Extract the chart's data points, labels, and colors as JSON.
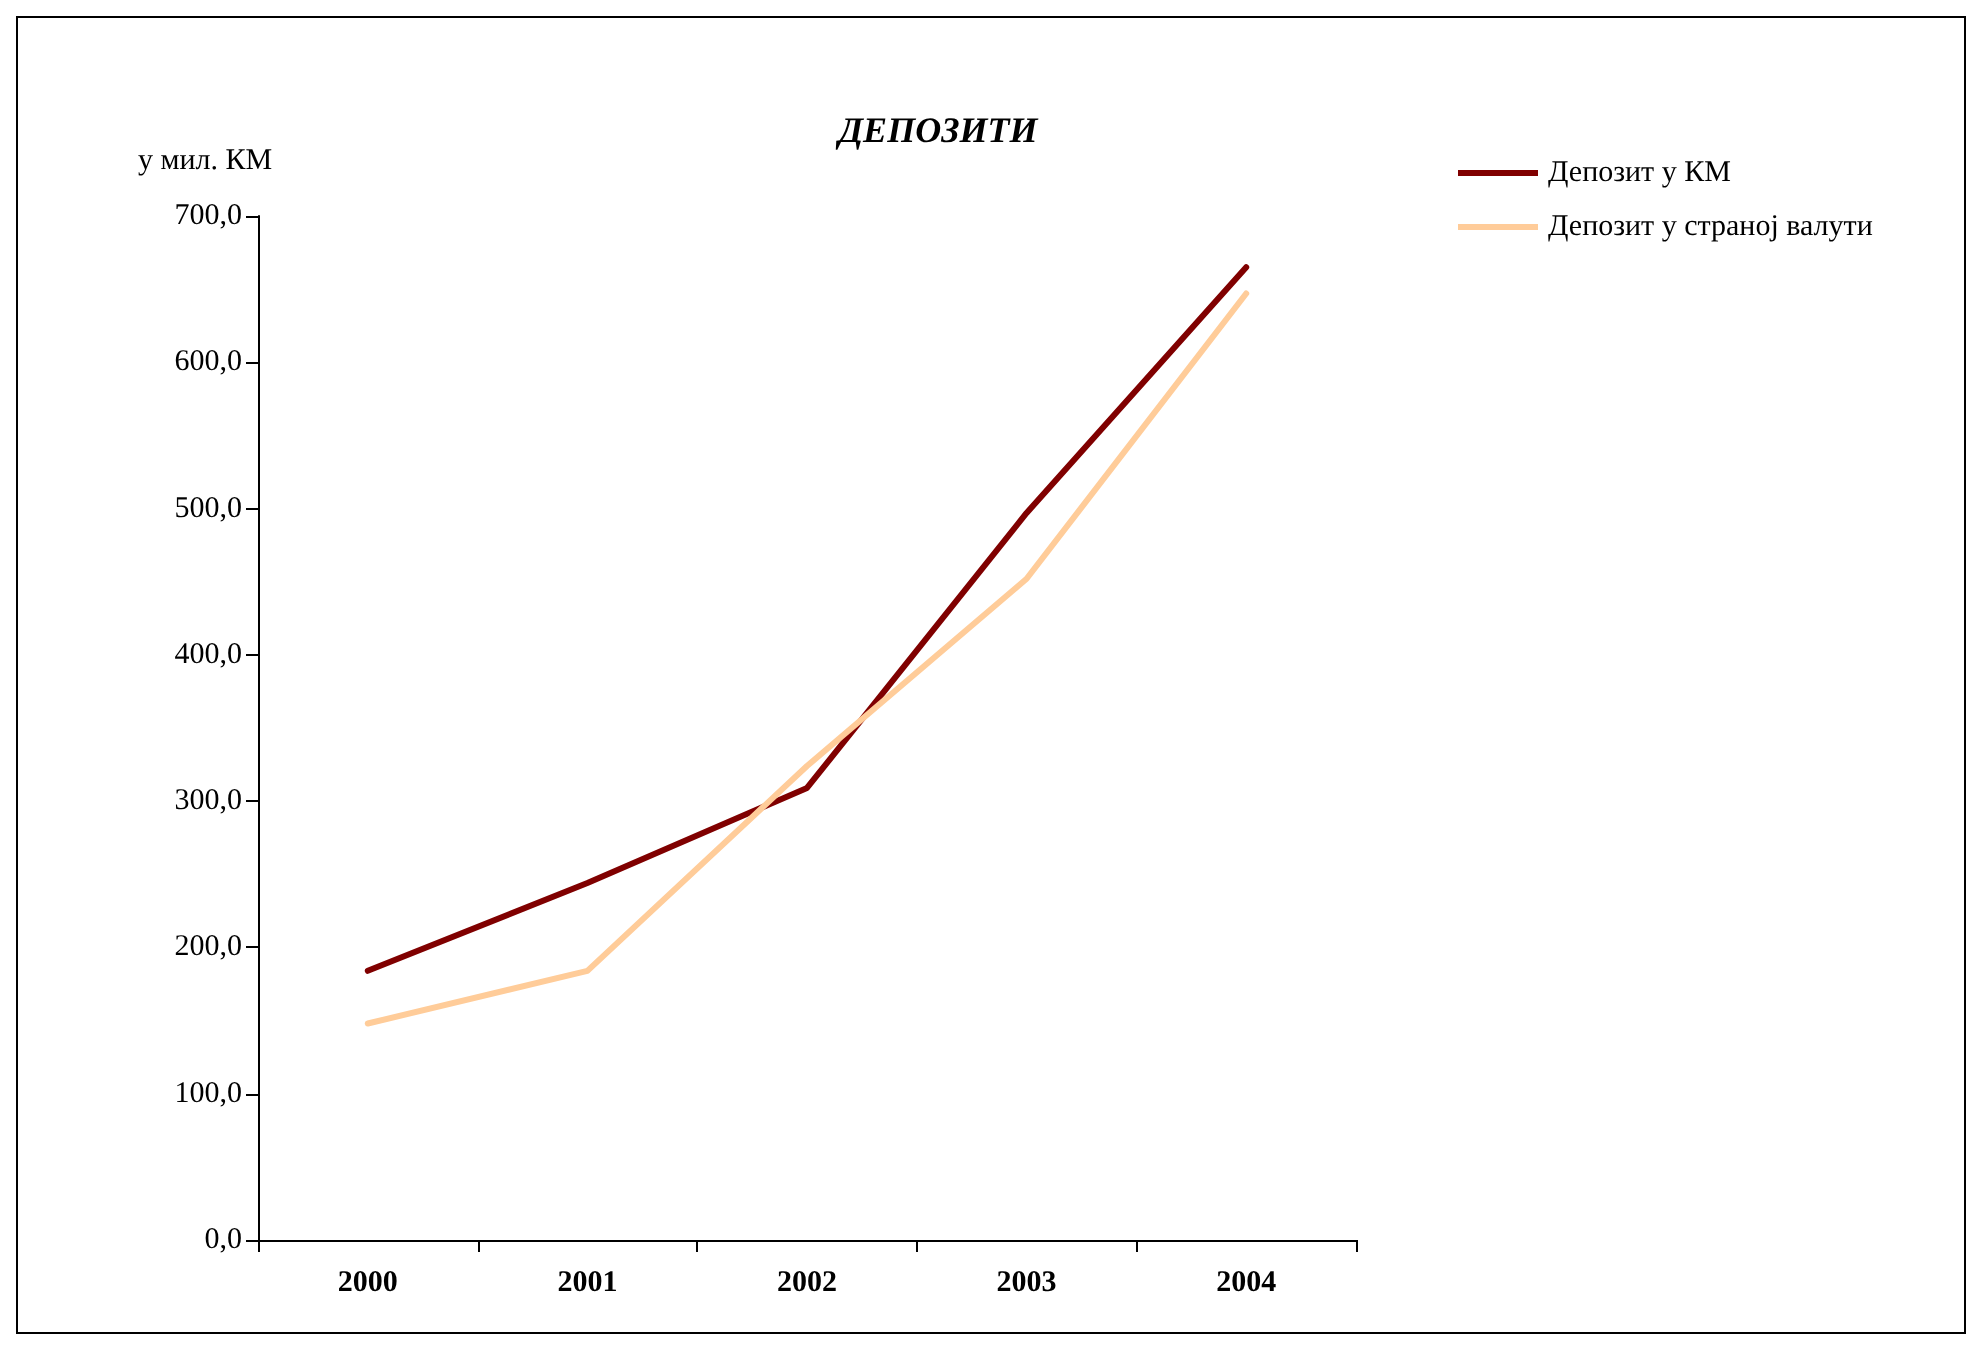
{
  "chart_data": {
    "type": "line",
    "title": "ДЕПОЗИТИ",
    "ylabel": "у мил. КМ",
    "categories": [
      "2000",
      "2001",
      "2002",
      "2003",
      "2004"
    ],
    "series": [
      {
        "name": "Депозит у КМ",
        "color": "#800000",
        "values": [
          184,
          244,
          309,
          497,
          665
        ]
      },
      {
        "name": "Депозит у страној валути",
        "color": "#ffcc99",
        "values": [
          148,
          184,
          324,
          452,
          647
        ]
      }
    ],
    "ylim": [
      0,
      700
    ],
    "yticks": [
      {
        "value": 0,
        "label": "0,0"
      },
      {
        "value": 100,
        "label": "100,0"
      },
      {
        "value": 200,
        "label": "200,0"
      },
      {
        "value": 300,
        "label": "300,0"
      },
      {
        "value": 400,
        "label": "400,0"
      },
      {
        "value": 500,
        "label": "500,0"
      },
      {
        "value": 600,
        "label": "600,0"
      },
      {
        "value": 700,
        "label": "700,0"
      }
    ],
    "grid": false,
    "legend": "top right",
    "marker": "none",
    "line_style": "solid"
  }
}
